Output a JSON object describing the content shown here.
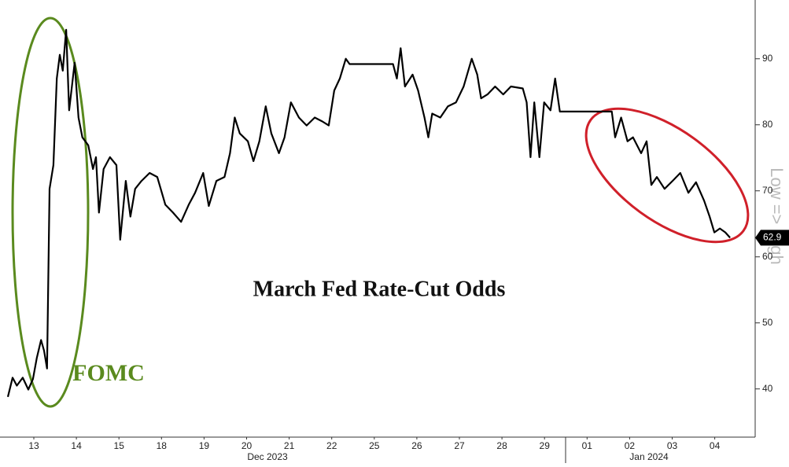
{
  "chart_data": {
    "type": "line",
    "title": "March Fed Rate-Cut Odds",
    "annotations": [
      "FOMC",
      "Dec 2023",
      "Jan 2024"
    ],
    "y_axis_label": "Low => High",
    "last_value_label": "62.9",
    "color": "#000000",
    "x": [
      -0.11,
      0.0,
      0.1,
      0.24,
      0.37,
      0.48,
      0.57,
      0.67,
      0.74,
      0.81,
      0.87,
      0.96,
      1.04,
      1.11,
      1.18,
      1.26,
      1.33,
      1.46,
      1.55,
      1.64,
      1.78,
      1.89,
      1.96,
      2.03,
      2.14,
      2.29,
      2.44,
      2.53,
      2.66,
      2.77,
      2.88,
      3.03,
      3.22,
      3.4,
      3.59,
      3.77,
      3.96,
      4.14,
      4.29,
      4.48,
      4.61,
      4.79,
      4.98,
      5.11,
      5.22,
      5.34,
      5.53,
      5.66,
      5.8,
      5.95,
      6.08,
      6.26,
      6.39,
      6.54,
      6.73,
      6.91,
      7.1,
      7.28,
      7.43,
      7.56,
      7.69,
      7.83,
      7.92,
      8.94,
      9.03,
      9.12,
      9.22,
      9.4,
      9.53,
      9.68,
      9.77,
      9.86,
      10.05,
      10.23,
      10.42,
      10.6,
      10.79,
      10.92,
      11.01,
      11.16,
      11.34,
      11.53,
      11.71,
      11.99,
      12.08,
      12.17,
      12.26,
      12.38,
      12.49,
      12.64,
      12.75,
      12.86,
      14.08,
      14.16,
      14.3,
      14.45,
      14.58,
      14.77,
      14.9,
      15.01,
      15.14,
      15.32,
      15.51,
      15.69,
      15.88,
      16.06,
      16.25,
      16.38,
      16.49,
      16.62,
      16.75,
      16.86
    ],
    "values": [
      38.8,
      41.7,
      40.5,
      41.7,
      39.9,
      41.5,
      44.7,
      47.4,
      45.8,
      43.1,
      70.3,
      73.9,
      87.0,
      90.6,
      88.2,
      94.4,
      82.2,
      89.4,
      81.1,
      78.1,
      76.9,
      73.3,
      75.1,
      66.7,
      73.3,
      75.1,
      73.9,
      62.6,
      71.5,
      66.1,
      70.3,
      71.5,
      72.7,
      72.1,
      67.9,
      66.7,
      65.3,
      67.9,
      69.7,
      72.7,
      67.7,
      71.5,
      72.1,
      75.7,
      81.1,
      78.7,
      77.5,
      74.5,
      77.5,
      82.8,
      78.7,
      75.7,
      78.1,
      83.4,
      81.1,
      79.9,
      81.1,
      80.5,
      79.9,
      85.2,
      87.0,
      90.0,
      89.2,
      89.2,
      87.0,
      91.6,
      85.8,
      87.6,
      85.2,
      81.1,
      78.1,
      81.7,
      81.1,
      82.8,
      83.4,
      85.8,
      90.0,
      87.6,
      84.0,
      84.6,
      85.8,
      84.6,
      85.8,
      85.5,
      83.4,
      75.1,
      83.4,
      75.1,
      83.4,
      82.2,
      87.0,
      82.0,
      82.0,
      78.1,
      81.1,
      77.5,
      78.1,
      75.7,
      77.5,
      70.9,
      72.1,
      70.3,
      71.5,
      72.7,
      69.7,
      71.3,
      68.5,
      66.1,
      63.7,
      64.3,
      63.7,
      62.9
    ],
    "xlim": [
      -0.11,
      17.45
    ],
    "xticks": [
      {
        "value": 0.5,
        "label": "13"
      },
      {
        "value": 1.5,
        "label": "14"
      },
      {
        "value": 2.5,
        "label": "15"
      },
      {
        "value": 3.5,
        "label": "18"
      },
      {
        "value": 4.5,
        "label": "19"
      },
      {
        "value": 5.5,
        "label": "20"
      },
      {
        "value": 6.5,
        "label": "21"
      },
      {
        "value": 7.5,
        "label": "22"
      },
      {
        "value": 8.5,
        "label": "25"
      },
      {
        "value": 9.5,
        "label": "26"
      },
      {
        "value": 10.5,
        "label": "27"
      },
      {
        "value": 11.5,
        "label": "28"
      },
      {
        "value": 12.5,
        "label": "29"
      },
      {
        "value": 13.5,
        "label": "01"
      },
      {
        "value": 14.5,
        "label": "02"
      },
      {
        "value": 15.5,
        "label": "03"
      },
      {
        "value": 16.5,
        "label": "04"
      }
    ],
    "ylim": [
      32.7,
      98.9
    ],
    "yticks": [
      40,
      50,
      60,
      70,
      80,
      90
    ],
    "grid": false
  }
}
